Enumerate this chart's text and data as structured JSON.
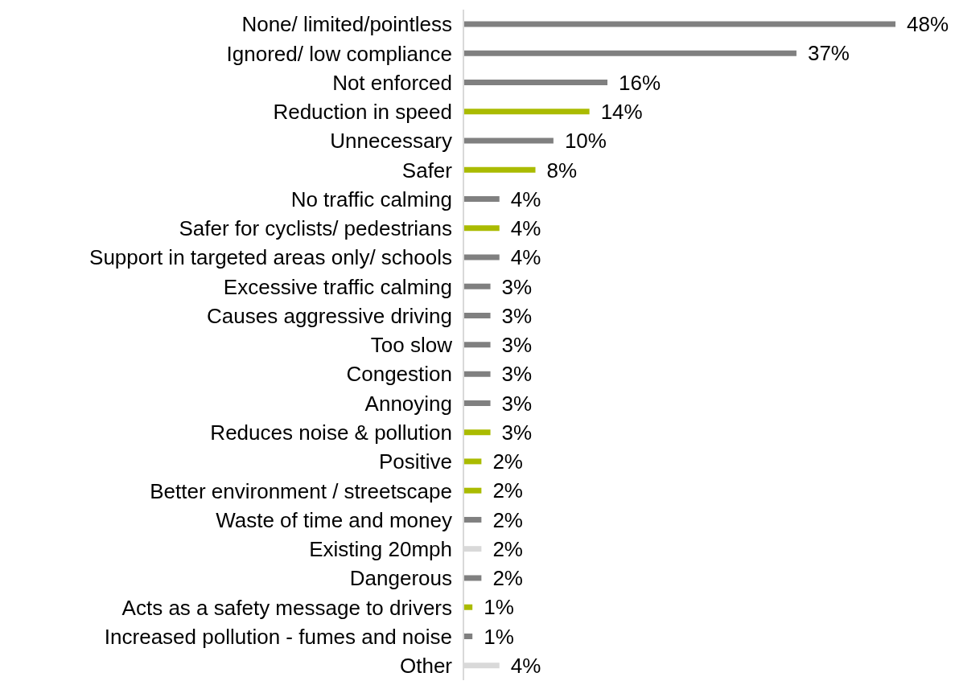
{
  "chart_data": {
    "type": "bar",
    "orientation": "horizontal",
    "categories": [
      "None/ limited/pointless",
      "Ignored/ low compliance",
      "Not enforced",
      "Reduction in speed",
      "Unnecessary",
      "Safer",
      "No traffic calming",
      "Safer for cyclists/ pedestrians",
      "Support in targeted areas only/ schools",
      "Excessive traffic calming",
      "Causes aggressive driving",
      "Too slow",
      "Congestion",
      "Annoying",
      "Reduces noise & pollution",
      "Positive",
      "Better environment / streetscape",
      "Waste of time and money",
      "Existing 20mph",
      "Dangerous",
      "Acts as a safety message to drivers",
      "Increased pollution - fumes and noise",
      "Other"
    ],
    "values": [
      48,
      37,
      16,
      14,
      10,
      8,
      4,
      4,
      4,
      3,
      3,
      3,
      3,
      3,
      3,
      2,
      2,
      2,
      2,
      2,
      1,
      1,
      4
    ],
    "colors": [
      "#808080",
      "#808080",
      "#808080",
      "#aabb00",
      "#808080",
      "#aabb00",
      "#808080",
      "#aabb00",
      "#808080",
      "#808080",
      "#808080",
      "#808080",
      "#808080",
      "#808080",
      "#aabb00",
      "#aabb00",
      "#aabb00",
      "#808080",
      "#d9d9d9",
      "#808080",
      "#aabb00",
      "#808080",
      "#d9d9d9"
    ],
    "value_labels": [
      "48%",
      "37%",
      "16%",
      "14%",
      "10%",
      "8%",
      "4%",
      "4%",
      "4%",
      "3%",
      "3%",
      "3%",
      "3%",
      "3%",
      "3%",
      "2%",
      "2%",
      "2%",
      "2%",
      "2%",
      "1%",
      "1%",
      "4%"
    ],
    "grid": false,
    "legend": false
  }
}
